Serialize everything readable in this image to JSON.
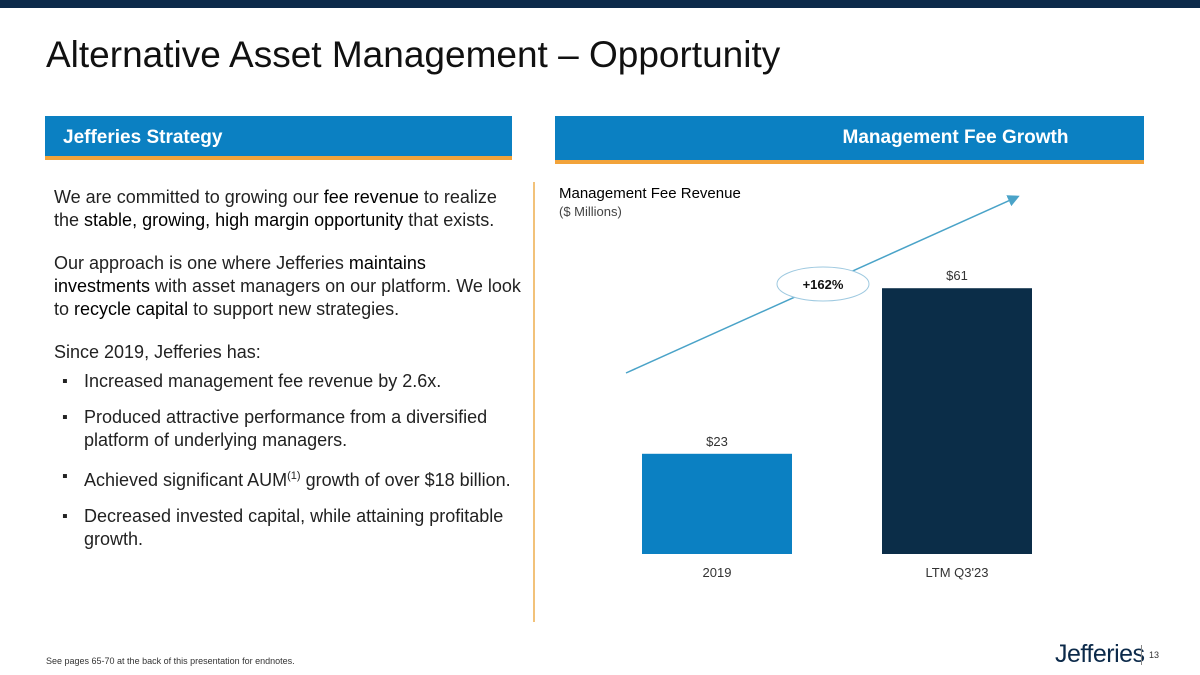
{
  "page": {
    "title": "Alternative Asset Management – Opportunity",
    "footnote": "See pages 65-70 at the back of this presentation for endnotes.",
    "logo": "Jefferies",
    "page_number": "13"
  },
  "left_panel": {
    "header": "Jefferies Strategy",
    "para1": {
      "a": "We are committed to growing our ",
      "b": "fee revenue",
      "c": " to realize the ",
      "d": "stable, growing, high margin opportunity",
      "e": " that exists."
    },
    "para2": {
      "a": "Our approach is one where Jefferies ",
      "b": "maintains investments",
      "c": " with asset managers on our platform. We look to ",
      "d": "recycle capital",
      "e": " to support new strategies."
    },
    "para3": "Since 2019, Jefferies has:",
    "bullets": {
      "b1": "Increased management fee revenue by 2.6x.",
      "b2": "Produced attractive performance from a diversified platform of underlying managers.",
      "b3a": "Achieved significant AUM",
      "b3sup": "(1)",
      "b3b": " growth of over $18 billion.",
      "b4": "Decreased invested capital, while attaining profitable growth."
    }
  },
  "right_panel": {
    "header": "Management Fee Growth"
  },
  "colors": {
    "header_blue": "#0b80c2",
    "accent_orange": "#f2a33a",
    "bar_2019": "#0b80c2",
    "bar_ltm": "#0b2d48",
    "arrow": "#4aa3c8"
  },
  "chart_data": {
    "type": "bar",
    "title": "Management Fee Revenue",
    "subtitle": "($ Millions)",
    "categories": [
      "2019",
      "LTM Q3'23"
    ],
    "values": [
      23,
      61
    ],
    "data_labels": [
      "$23",
      "$61"
    ],
    "bar_colors": [
      "#0b80c2",
      "#0b2d48"
    ],
    "annotation": "+162%",
    "ylim": [
      0,
      70
    ],
    "grid": false,
    "legend": "none"
  }
}
